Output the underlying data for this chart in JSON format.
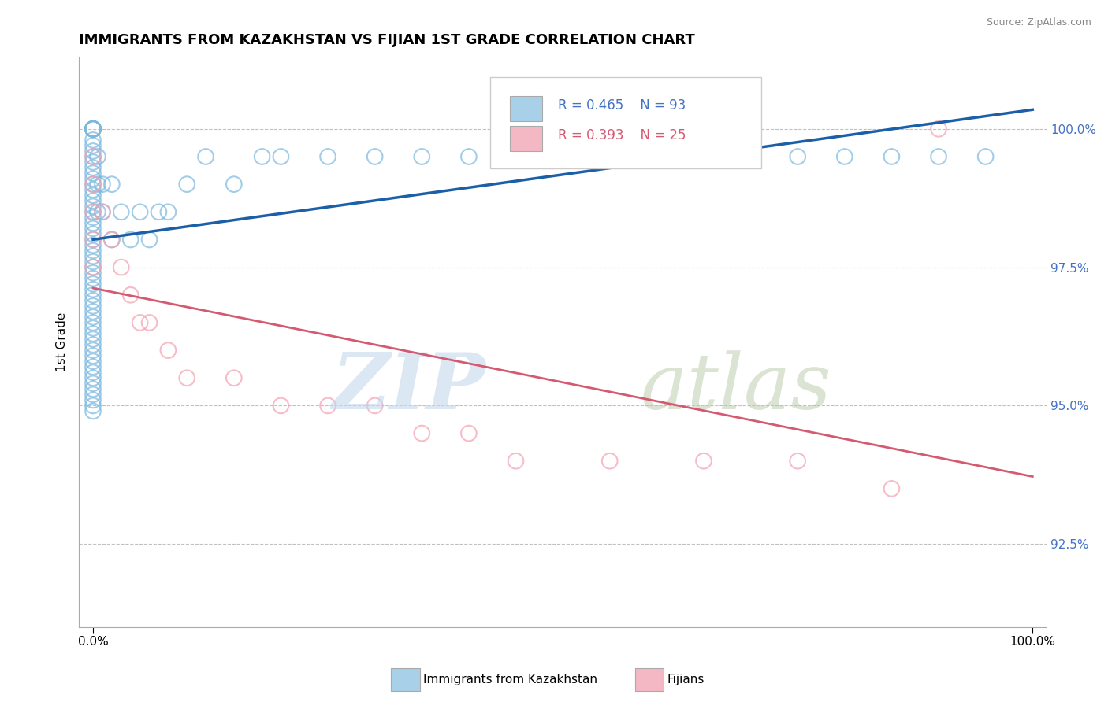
{
  "title": "IMMIGRANTS FROM KAZAKHSTAN VS FIJIAN 1ST GRADE CORRELATION CHART",
  "source_text": "Source: ZipAtlas.com",
  "ylabel": "1st Grade",
  "r_blue": 0.465,
  "n_blue": 93,
  "r_pink": 0.393,
  "n_pink": 25,
  "xlim": [
    -1.5,
    101.5
  ],
  "ylim": [
    91.0,
    101.3
  ],
  "yticks": [
    92.5,
    95.0,
    97.5,
    100.0
  ],
  "ytick_labels": [
    "92.5%",
    "95.0%",
    "97.5%",
    "100.0%"
  ],
  "xticks": [
    0,
    100
  ],
  "xtick_labels": [
    "0.0%",
    "100.0%"
  ],
  "blue_color": "#7ab8e0",
  "pink_color": "#f4a0b0",
  "blue_line_color": "#1a5fa8",
  "pink_line_color": "#d45a72",
  "legend_color_blue": "#a8d0e8",
  "legend_color_pink": "#f4b8c4",
  "blue_x": [
    0.0,
    0.0,
    0.0,
    0.0,
    0.0,
    0.0,
    0.0,
    0.0,
    0.0,
    0.0,
    0.0,
    0.0,
    0.0,
    0.0,
    0.0,
    0.0,
    0.0,
    0.0,
    0.0,
    0.0,
    0.0,
    0.0,
    0.0,
    0.0,
    0.0,
    0.0,
    0.0,
    0.0,
    0.0,
    0.0,
    0.0,
    0.0,
    0.0,
    0.0,
    0.0,
    0.0,
    0.0,
    0.0,
    0.0,
    0.0,
    0.0,
    0.0,
    0.0,
    0.0,
    0.0,
    0.0,
    0.0,
    0.0,
    0.0,
    0.0,
    0.0,
    0.0,
    0.0,
    0.0,
    0.0,
    0.0,
    0.0,
    0.0,
    0.0,
    0.0,
    0.5,
    0.5,
    0.5,
    1.0,
    1.0,
    2.0,
    2.0,
    3.0,
    4.0,
    5.0,
    6.0,
    7.0,
    8.0,
    10.0,
    12.0,
    15.0,
    18.0,
    20.0,
    25.0,
    30.0,
    35.0,
    40.0,
    45.0,
    50.0,
    55.0,
    60.0,
    65.0,
    70.0,
    75.0,
    80.0,
    85.0,
    90.0,
    95.0
  ],
  "blue_y": [
    100.0,
    100.0,
    100.0,
    100.0,
    100.0,
    100.0,
    100.0,
    100.0,
    100.0,
    100.0,
    99.8,
    99.7,
    99.6,
    99.5,
    99.4,
    99.3,
    99.2,
    99.1,
    99.0,
    98.9,
    98.8,
    98.7,
    98.6,
    98.5,
    98.4,
    98.3,
    98.2,
    98.1,
    98.0,
    97.9,
    97.8,
    97.7,
    97.6,
    97.5,
    97.4,
    97.3,
    97.2,
    97.1,
    97.0,
    96.9,
    96.8,
    96.7,
    96.6,
    96.5,
    96.4,
    96.3,
    96.2,
    96.1,
    96.0,
    95.9,
    95.8,
    95.7,
    95.6,
    95.5,
    95.4,
    95.3,
    95.2,
    95.1,
    95.0,
    94.9,
    99.5,
    99.0,
    98.5,
    99.0,
    98.5,
    99.0,
    98.0,
    98.5,
    98.0,
    98.5,
    98.0,
    98.5,
    98.5,
    99.0,
    99.5,
    99.0,
    99.5,
    99.5,
    99.5,
    99.5,
    99.5,
    99.5,
    99.5,
    99.5,
    99.5,
    99.5,
    99.5,
    99.5,
    99.5,
    99.5,
    99.5,
    99.5,
    99.5
  ],
  "pink_x": [
    0.0,
    0.0,
    0.0,
    0.0,
    0.0,
    1.0,
    2.0,
    3.0,
    4.0,
    5.0,
    6.0,
    8.0,
    10.0,
    15.0,
    20.0,
    25.0,
    30.0,
    35.0,
    40.0,
    45.0,
    55.0,
    65.0,
    75.0,
    85.0,
    90.0
  ],
  "pink_y": [
    99.5,
    99.0,
    98.5,
    98.0,
    97.5,
    98.5,
    98.0,
    97.5,
    97.0,
    96.5,
    96.5,
    96.0,
    95.5,
    95.5,
    95.0,
    95.0,
    95.0,
    94.5,
    94.5,
    94.0,
    94.0,
    94.0,
    94.0,
    93.5,
    100.0
  ]
}
